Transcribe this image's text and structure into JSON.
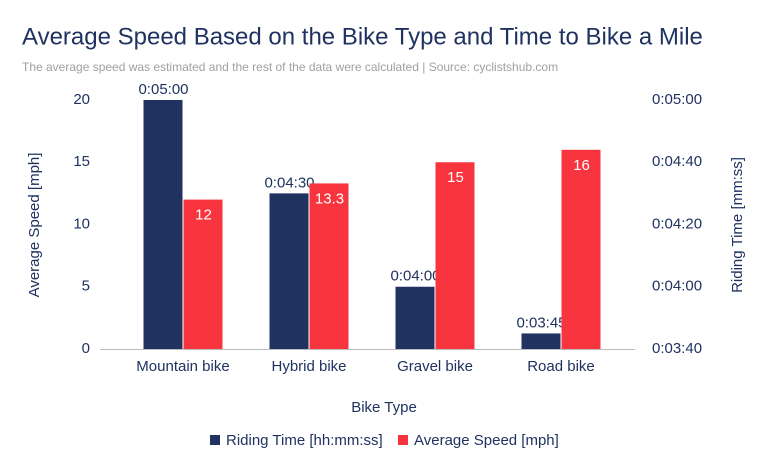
{
  "chart_data": {
    "type": "bar",
    "title": "Average Speed Based on the Bike Type and Time to Bike a Mile",
    "subtitle": "The average speed was estimated and the rest of the data were calculated | Source: cyclistshub.com",
    "x_label": "Bike Type",
    "y_label": "Average Speed [mph]",
    "y2_label": "Riding Time [mm:ss]",
    "categories": [
      "Mountain bike",
      "Hybrid bike",
      "Gravel bike",
      "Road bike"
    ],
    "series": [
      {
        "name": "Riding Time [hh:mm:ss]",
        "color": "#1f3260",
        "axis": "y2",
        "values": [
          300,
          270,
          240,
          225
        ],
        "value_labels": [
          "0:05:00",
          "0:04:30",
          "0:04:00",
          "0:03:45"
        ]
      },
      {
        "name": "Average Speed [mph]",
        "color": "#f8343f",
        "values": [
          12,
          13.3,
          15,
          16
        ]
      }
    ],
    "ylim": [
      0,
      20
    ],
    "yticks": [
      0,
      5,
      10,
      15,
      20
    ],
    "y2lim": [
      220,
      300
    ],
    "y2ticks": [
      {
        "value": 220,
        "label": "0:03:40"
      },
      {
        "value": 240,
        "label": "0:04:00"
      },
      {
        "value": 260,
        "label": "0:04:20"
      },
      {
        "value": 280,
        "label": "0:04:40"
      },
      {
        "value": 300,
        "label": "0:05:00"
      }
    ],
    "grid": false,
    "legend": "bottom"
  }
}
